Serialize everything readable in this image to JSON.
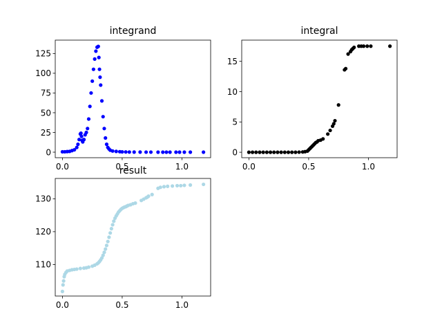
{
  "chart_data": [
    {
      "type": "scatter",
      "title": "integrand",
      "xlabel": "",
      "ylabel": "",
      "xlim": [
        -0.06,
        1.24
      ],
      "ylim": [
        -7,
        142
      ],
      "xticks": [
        0.0,
        0.5,
        1.0
      ],
      "xtick_labels": [
        "0.0",
        "0.5",
        "1.0"
      ],
      "yticks": [
        0,
        25,
        50,
        75,
        100,
        125
      ],
      "ytick_labels": [
        "0",
        "25",
        "50",
        "75",
        "100",
        "125"
      ],
      "grid": false,
      "color": "#0000ff",
      "series": [
        {
          "x": [
            0.0,
            0.02,
            0.04,
            0.06,
            0.08,
            0.1,
            0.12,
            0.13,
            0.14,
            0.15,
            0.155,
            0.16,
            0.165,
            0.17,
            0.18,
            0.19,
            0.2,
            0.21,
            0.22,
            0.23,
            0.24,
            0.25,
            0.26,
            0.27,
            0.28,
            0.29,
            0.3,
            0.305,
            0.31,
            0.315,
            0.32,
            0.33,
            0.34,
            0.35,
            0.36,
            0.37,
            0.38,
            0.39,
            0.4,
            0.42,
            0.45,
            0.48,
            0.5,
            0.53,
            0.56,
            0.6,
            0.65,
            0.7,
            0.74,
            0.8,
            0.84,
            0.87,
            0.9,
            0.95,
            0.98,
            1.02,
            1.07,
            1.18
          ],
          "y": [
            0.5,
            0.5,
            0.8,
            1.0,
            2.0,
            3.0,
            6.0,
            10.0,
            16.0,
            23.0,
            24.0,
            20.0,
            15.0,
            13.0,
            16.0,
            22.0,
            25.0,
            30.0,
            42.0,
            58.0,
            75.0,
            90.0,
            105.0,
            118.0,
            128.0,
            133.0,
            134.0,
            120.0,
            105.0,
            95.0,
            85.0,
            65.0,
            45.0,
            30.0,
            18.0,
            10.0,
            6.0,
            4.0,
            2.5,
            1.5,
            1.0,
            0.6,
            0.4,
            0.3,
            0.2,
            0.1,
            0.1,
            0.05,
            0.05,
            0.02,
            0.02,
            0.01,
            0.01,
            0.0,
            0.0,
            0.0,
            0.0,
            0.0
          ]
        }
      ]
    },
    {
      "type": "scatter",
      "title": "integral",
      "xlabel": "",
      "ylabel": "",
      "xlim": [
        -0.06,
        1.24
      ],
      "ylim": [
        -0.9,
        18.5
      ],
      "xticks": [
        0.0,
        0.5,
        1.0
      ],
      "xtick_labels": [
        "0.0",
        "0.5",
        "1.0"
      ],
      "yticks": [
        0,
        5,
        10,
        15
      ],
      "ytick_labels": [
        "0",
        "5",
        "10",
        "15"
      ],
      "grid": false,
      "color": "#000000",
      "series": [
        {
          "x": [
            0.0,
            0.03,
            0.06,
            0.09,
            0.12,
            0.15,
            0.18,
            0.21,
            0.24,
            0.27,
            0.3,
            0.33,
            0.36,
            0.39,
            0.42,
            0.45,
            0.47,
            0.49,
            0.5,
            0.51,
            0.52,
            0.53,
            0.54,
            0.55,
            0.56,
            0.57,
            0.58,
            0.6,
            0.62,
            0.66,
            0.68,
            0.7,
            0.71,
            0.72,
            0.75,
            0.8,
            0.81,
            0.83,
            0.85,
            0.86,
            0.87,
            0.88,
            0.92,
            0.94,
            0.96,
            0.99,
            1.02,
            1.18
          ],
          "y": [
            0.0,
            0.0,
            0.0,
            0.0,
            0.0,
            0.0,
            0.0,
            0.0,
            0.0,
            0.0,
            0.0,
            0.0,
            0.0,
            0.0,
            0.02,
            0.05,
            0.1,
            0.2,
            0.4,
            0.6,
            0.8,
            1.0,
            1.2,
            1.4,
            1.6,
            1.7,
            1.9,
            2.0,
            2.2,
            3.0,
            3.6,
            4.3,
            4.7,
            5.2,
            7.8,
            13.6,
            13.8,
            16.2,
            16.6,
            16.9,
            17.1,
            17.3,
            17.5,
            17.5,
            17.5,
            17.5,
            17.5,
            17.5
          ]
        }
      ]
    },
    {
      "type": "scatter",
      "title": "result",
      "xlabel": "",
      "ylabel": "",
      "xlim": [
        -0.06,
        1.24
      ],
      "ylim": [
        100.4,
        136.2
      ],
      "xticks": [
        0.0,
        0.5,
        1.0
      ],
      "xtick_labels": [
        "0.0",
        "0.5",
        "1.0"
      ],
      "yticks": [
        110,
        120,
        130
      ],
      "ytick_labels": [
        "110",
        "120",
        "130"
      ],
      "grid": false,
      "color": "#add8e6",
      "series": [
        {
          "x": [
            0.0,
            0.005,
            0.01,
            0.015,
            0.02,
            0.03,
            0.04,
            0.06,
            0.08,
            0.1,
            0.12,
            0.15,
            0.18,
            0.2,
            0.22,
            0.25,
            0.27,
            0.29,
            0.3,
            0.31,
            0.32,
            0.33,
            0.34,
            0.35,
            0.36,
            0.37,
            0.38,
            0.39,
            0.4,
            0.41,
            0.42,
            0.43,
            0.44,
            0.45,
            0.46,
            0.47,
            0.48,
            0.49,
            0.5,
            0.51,
            0.52,
            0.53,
            0.54,
            0.55,
            0.57,
            0.59,
            0.61,
            0.66,
            0.68,
            0.7,
            0.71,
            0.72,
            0.75,
            0.8,
            0.82,
            0.85,
            0.88,
            0.92,
            0.96,
            0.99,
            1.02,
            1.07,
            1.18
          ],
          "y": [
            101.8,
            103.8,
            105.0,
            106.3,
            107.0,
            107.6,
            108.0,
            108.2,
            108.4,
            108.5,
            108.6,
            108.8,
            108.9,
            109.0,
            109.2,
            109.5,
            109.8,
            110.2,
            110.5,
            110.9,
            111.4,
            112.0,
            112.8,
            113.7,
            114.7,
            115.8,
            117.0,
            118.3,
            119.6,
            120.9,
            122.1,
            123.2,
            124.1,
            124.8,
            125.4,
            126.0,
            126.4,
            126.8,
            127.1,
            127.3,
            127.5,
            127.6,
            127.8,
            128.0,
            128.2,
            128.5,
            128.7,
            129.5,
            129.9,
            130.3,
            130.5,
            130.8,
            131.3,
            133.2,
            133.5,
            133.7,
            133.8,
            133.9,
            134.0,
            134.0,
            134.1,
            134.2,
            134.4
          ]
        }
      ]
    }
  ]
}
